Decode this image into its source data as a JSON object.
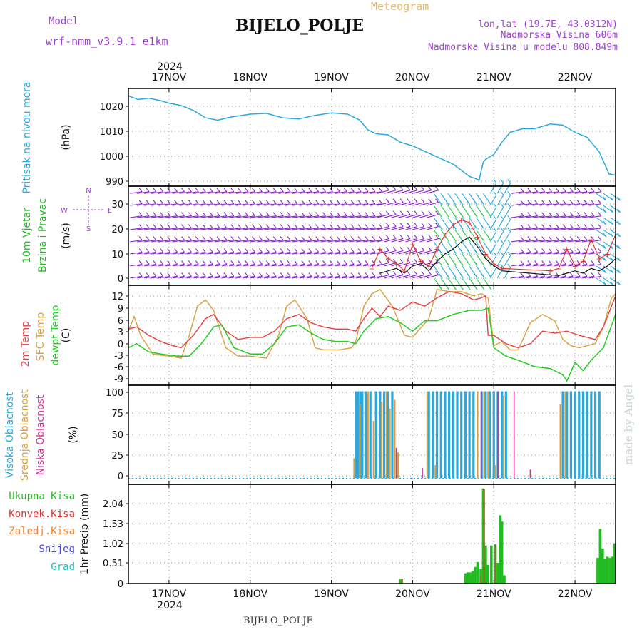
{
  "header": {
    "model_label": "Model",
    "model_name": "wrf-nmm_v3.9.1  e1km",
    "station": "BIJELO_POLJE",
    "product": "Meteogram",
    "info_lines": [
      "lon,lat (19.7E, 43.0312N)",
      "Nadmorska Visina 606m",
      "Nadmorska Visina u modelu 808.849m"
    ],
    "year": "2024",
    "footer_station": "BIJELO_POLJE",
    "watermark": "made by Angel"
  },
  "colors": {
    "pressure": "#2aa8e0",
    "wind_label": "#22bb22",
    "wind_speed_label": "#22bb22",
    "barb_purple": "#8822cc",
    "barb_cyan": "#22aadd",
    "barb_green": "#22cc44",
    "gust": "#e03030",
    "t2m": "#e84040",
    "sfc": "#d9a040",
    "dew": "#22cc22",
    "cloud_high": "#2aa8e0",
    "cloud_mid": "#d9a040",
    "cloud_low": "#cc3399",
    "precip_total": "#22bb22",
    "precip_conv": "#e03030",
    "precip_frozen": "#f08030",
    "precip_snow": "#4444dd",
    "precip_grad": "#22bbbb"
  },
  "chart_data": {
    "type": "line",
    "x_ticks": [
      "17NOV",
      "18NOV",
      "19NOV",
      "20NOV",
      "21NOV",
      "22NOV"
    ],
    "x_range_days": [
      16.5,
      22.5
    ],
    "panels": [
      {
        "id": "pressure",
        "ylabel_lines": [
          "Pritisak na nivou mora"
        ],
        "unit": "(hPa)",
        "yticks": [
          "990",
          "1000",
          "1010",
          "1020"
        ],
        "ylim": [
          988,
          1028
        ],
        "series": [
          {
            "x": [
              16.5,
              16.62,
              16.75,
              16.9,
              17.0,
              17.15,
              17.3,
              17.45,
              17.6,
              17.72,
              17.8,
              18.0,
              18.2,
              18.4,
              18.6,
              18.8,
              19.0,
              19.2,
              19.35,
              19.45,
              19.55,
              19.7,
              19.85,
              20.0,
              20.1,
              20.3,
              20.5,
              20.7,
              20.82,
              20.87,
              20.9,
              21.0,
              21.1,
              21.2,
              21.35,
              21.5,
              21.7,
              21.85,
              22.0,
              22.15,
              22.3,
              22.42,
              22.5
            ],
            "y": [
              1025,
              1023.5,
              1024,
              1023,
              1022,
              1021,
              1019,
              1016,
              1015,
              1016,
              1016.5,
              1017.5,
              1017.8,
              1016,
              1015.5,
              1017,
              1018,
              1017.5,
              1015,
              1011,
              1009.5,
              1009,
              1006,
              1004.5,
              1003,
              1000,
              997,
              992,
              990.5,
              998,
              999,
              1001,
              1006,
              1010,
              1011.5,
              1011.5,
              1013.5,
              1013,
              1010,
              1008,
              1002,
              993,
              992.5
            ]
          }
        ]
      },
      {
        "id": "wind",
        "ylabel_lines": [
          "10m Vjetar",
          "Brzina i Pravac"
        ],
        "unit": "(m/s)",
        "yticks": [
          "0",
          "10",
          "20",
          "30"
        ],
        "ylim": [
          -3,
          38
        ],
        "compass": [
          "N",
          "W",
          "E",
          "S"
        ],
        "series": [
          {
            "name": "speed",
            "x": [
              19.6,
              19.7,
              19.8,
              19.9,
              20.0,
              20.1,
              20.2,
              20.3,
              20.4,
              20.5,
              20.6,
              20.7,
              20.8,
              20.9,
              21.0,
              21.1,
              21.8,
              21.9,
              22.0,
              22.1,
              22.2,
              22.3,
              22.4,
              22.5
            ],
            "y": [
              2,
              3,
              4,
              2,
              5,
              6,
              3,
              7,
              10,
              12,
              15,
              17,
              13,
              8,
              5,
              3,
              1,
              2,
              3,
              2,
              4,
              3,
              5,
              8
            ]
          },
          {
            "name": "gust",
            "x": [
              19.5,
              19.6,
              19.7,
              19.8,
              19.9,
              20.0,
              20.1,
              20.2,
              20.3,
              20.4,
              20.5,
              20.6,
              20.7,
              20.8,
              20.9,
              21.0,
              21.1,
              21.7,
              21.8,
              21.9,
              22.0,
              22.1,
              22.2,
              22.3,
              22.4,
              22.5
            ],
            "y": [
              4,
              12,
              8,
              6,
              3,
              14,
              7,
              5,
              12,
              18,
              22,
              24,
              23,
              17,
              10,
              6,
              4,
              3,
              4,
              12,
              5,
              7,
              16,
              8,
              10,
              18
            ]
          }
        ]
      },
      {
        "id": "temperature",
        "ylabel_lines": [
          "2m Temp",
          "SFC Temp",
          "dewpt Temp"
        ],
        "unit": "(C)",
        "yticks": [
          "-9",
          "-6",
          "-3",
          "0",
          "3",
          "6",
          "9",
          "12"
        ],
        "ylim": [
          -10,
          14
        ],
        "series": [
          {
            "name": "2m Temp",
            "x": [
              16.5,
              16.6,
              16.75,
              16.9,
              17.05,
              17.15,
              17.3,
              17.45,
              17.55,
              17.7,
              17.85,
              18.0,
              18.15,
              18.3,
              18.45,
              18.6,
              18.75,
              18.9,
              19.05,
              19.2,
              19.3,
              19.4,
              19.5,
              19.6,
              19.7,
              19.85,
              20.0,
              20.15,
              20.3,
              20.45,
              20.6,
              20.75,
              20.85,
              20.9,
              20.93,
              21.0,
              21.15,
              21.3,
              21.45,
              21.6,
              21.75,
              21.9,
              22.05,
              22.15,
              22.25,
              22.35,
              22.5
            ],
            "y": [
              3.5,
              4,
              2,
              0.5,
              -0.5,
              -1,
              2,
              6,
              7,
              3,
              1,
              1.5,
              1.5,
              3,
              6,
              7,
              5,
              4,
              3.5,
              3.5,
              3,
              6,
              8.5,
              6.5,
              9,
              8,
              10,
              9,
              11,
              12.5,
              12,
              10.5,
              11,
              11.5,
              2,
              2,
              0,
              -1,
              0,
              3,
              2.5,
              3,
              2,
              1.5,
              1,
              4,
              11.5
            ]
          },
          {
            "name": "SFC Temp",
            "x": [
              16.5,
              16.57,
              16.65,
              16.8,
              17.0,
              17.15,
              17.25,
              17.35,
              17.45,
              17.55,
              17.7,
              17.85,
              18.0,
              18.2,
              18.35,
              18.45,
              18.55,
              18.7,
              18.8,
              18.9,
              19.1,
              19.25,
              19.3,
              19.4,
              19.5,
              19.6,
              19.75,
              19.9,
              20.0,
              20.2,
              20.3,
              20.45,
              20.6,
              20.75,
              20.85,
              20.93,
              21.0,
              21.1,
              21.2,
              21.3,
              21.45,
              21.6,
              21.75,
              21.85,
              21.95,
              22.05,
              22.15,
              22.25,
              22.35,
              22.45,
              22.5
            ],
            "y": [
              3,
              6.5,
              2,
              -2.5,
              -3,
              -3.5,
              2,
              9,
              10.5,
              8,
              -1,
              -3,
              -3,
              -3.5,
              2,
              9,
              10.5,
              6,
              -1,
              -1.5,
              -1.5,
              -1,
              0.5,
              9,
              12,
              13,
              9,
              2,
              1.5,
              6,
              13,
              12.5,
              12.5,
              11.5,
              12,
              11,
              -0.5,
              0.5,
              -1.5,
              -1.5,
              5,
              7,
              5.5,
              1,
              -0.5,
              -1,
              -0.5,
              0,
              4,
              11,
              12
            ]
          },
          {
            "name": "dewpt Temp",
            "x": [
              16.5,
              16.6,
              16.75,
              16.9,
              17.1,
              17.25,
              17.4,
              17.55,
              17.65,
              17.8,
              18.0,
              18.15,
              18.3,
              18.45,
              18.6,
              18.75,
              18.9,
              19.05,
              19.2,
              19.3,
              19.4,
              19.55,
              19.7,
              19.85,
              20.0,
              20.15,
              20.3,
              20.5,
              20.7,
              20.85,
              20.93,
              21.0,
              21.15,
              21.3,
              21.5,
              21.7,
              21.85,
              21.9,
              22.0,
              22.1,
              22.2,
              22.35,
              22.5
            ],
            "y": [
              -1,
              0,
              -2,
              -2.5,
              -3,
              -3,
              0,
              4,
              4.5,
              -1,
              -2.5,
              -2.5,
              0,
              4,
              4.5,
              2.5,
              1,
              0.5,
              0.5,
              0,
              3,
              6,
              6.5,
              5,
              3,
              5.5,
              5.5,
              7,
              8,
              8,
              8.5,
              -1,
              -3,
              -4,
              -5.5,
              -6,
              -7.5,
              -9,
              -4.5,
              -6.5,
              -4,
              -1,
              7
            ]
          }
        ]
      },
      {
        "id": "clouds",
        "ylabel_lines": [
          "Visoka Oblacnost",
          "Srednja Oblacnost",
          "Niska Oblacnost"
        ],
        "unit": "(%)",
        "yticks": [
          "0",
          "25",
          "50",
          "75",
          "100"
        ],
        "ylim": [
          -7,
          107
        ],
        "bars": [
          {
            "name": "Visoka Oblacnost",
            "x": [
              19.3,
              19.33,
              19.36,
              19.38,
              19.42,
              19.48,
              19.55,
              19.6,
              19.65,
              19.7,
              19.75,
              20.2,
              20.25,
              20.3,
              20.35,
              20.4,
              20.45,
              20.5,
              20.55,
              20.6,
              20.65,
              20.7,
              20.75,
              20.85,
              20.9,
              20.95,
              21.0,
              21.05,
              21.1,
              21.15,
              21.85,
              21.9,
              21.95,
              22.0,
              22.05,
              22.1,
              22.15,
              22.2,
              22.25,
              22.3
            ],
            "y": [
              100,
              100,
              100,
              100,
              100,
              100,
              100,
              100,
              100,
              100,
              100,
              100,
              100,
              100,
              100,
              100,
              100,
              100,
              100,
              100,
              100,
              100,
              100,
              100,
              100,
              100,
              100,
              100,
              100,
              100,
              100,
              100,
              100,
              100,
              100,
              100,
              100,
              100,
              100,
              100
            ]
          },
          {
            "name": "Srednja Oblacnost",
            "x": [
              19.28,
              19.35,
              19.45,
              19.52,
              19.62,
              19.68,
              19.72,
              19.78,
              19.82,
              20.18,
              20.28,
              20.8,
              20.88,
              20.93,
              21.02,
              21.12,
              21.82,
              21.88
            ],
            "y": [
              23,
              85,
              100,
              66,
              88,
              100,
              80,
              90,
              30,
              100,
              15,
              100,
              100,
              100,
              15,
              95,
              85,
              100
            ]
          },
          {
            "name": "Niska Oblacnost",
            "x": [
              19.8,
              20.12,
              20.85,
              21.05,
              21.25,
              21.45
            ],
            "y": [
              35,
              12,
              100,
              100,
              100,
              10
            ]
          }
        ]
      },
      {
        "id": "precip",
        "ylabel_lines": [
          "Ukupna Kisa",
          "Konvek.Kisa",
          "Zaledj.Kisa",
          "Snijeg",
          "Grad"
        ],
        "unit": "1hr Precip (mm)",
        "yticks": [
          "0",
          "0.51",
          "1.02",
          "1.53",
          "2.04"
        ],
        "ylim": [
          0,
          2.4
        ],
        "bars": [
          {
            "name": "Ukupna Kisa",
            "x": [
              19.85,
              20.65,
              20.68,
              20.71,
              20.74,
              20.77,
              20.8,
              20.84,
              20.87,
              20.9,
              20.93,
              20.97,
              21.02,
              21.05,
              21.08,
              21.1,
              21.13,
              22.28,
              22.31,
              22.34,
              22.37,
              22.4,
              22.43,
              22.46,
              22.49
            ],
            "y": [
              0.1,
              0.25,
              0.27,
              0.27,
              0.3,
              0.4,
              0.52,
              0.35,
              2.3,
              0.92,
              0.45,
              0.92,
              0.95,
              0.5,
              1.65,
              1.5,
              0.2,
              0.62,
              1.32,
              0.85,
              0.6,
              0.65,
              0.62,
              0.65,
              0.97
            ]
          },
          {
            "name": "Konvek.Kisa",
            "x": [
              19.87,
              20.84,
              20.88,
              21.02
            ],
            "y": [
              0.12,
              0.18,
              2.28,
              0.9
            ]
          }
        ]
      }
    ]
  }
}
